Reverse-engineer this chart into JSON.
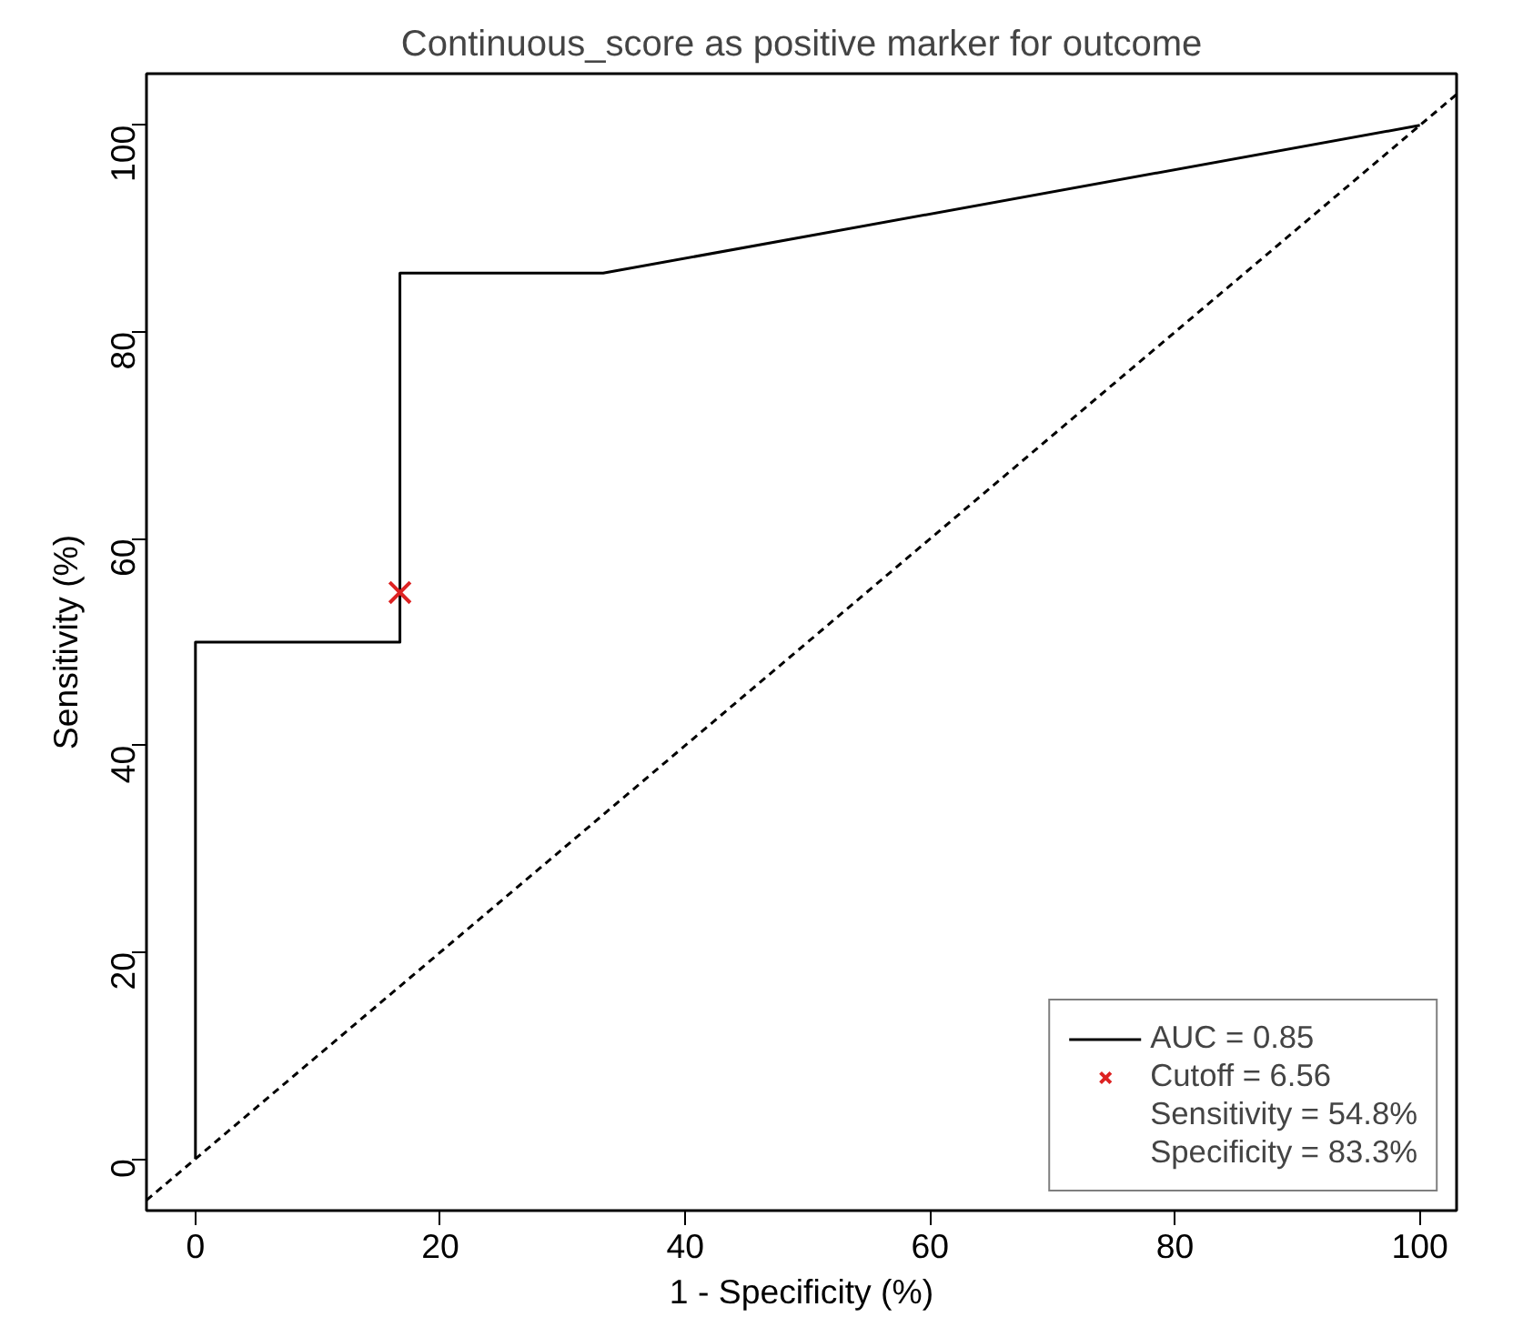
{
  "chart_data": {
    "type": "line",
    "title": "Continuous_score as positive marker for outcome",
    "xlabel": "1 - Specificity (%)",
    "ylabel": "Sensitivity (%)",
    "series": [
      {
        "name": "AUC = 0.85",
        "color": "#000000",
        "x": [
          0,
          0,
          16.7,
          16.7,
          33.3,
          100
        ],
        "values": [
          0,
          50,
          50,
          85.7,
          85.7,
          100
        ],
        "line_style": "solid"
      },
      {
        "type": "line",
        "color": "#000000",
        "x": [
          -4,
          103
        ],
        "values": [
          -4,
          103
        ],
        "line_style": "dashed"
      },
      {
        "name": "Cutoff = 6.56",
        "type": "scatter",
        "color": "#dd2222",
        "x": [
          16.7
        ],
        "values": [
          54.8
        ],
        "marker": "cross"
      }
    ],
    "annotations": [
      "Sensitivity = 54.8%",
      "Specificity = 83.3%"
    ],
    "xlim": [
      -4,
      103
    ],
    "ylim": [
      -5,
      105
    ],
    "xticks": [
      0,
      20,
      40,
      60,
      80,
      100
    ],
    "yticks": [
      0,
      20,
      40,
      60,
      80,
      100
    ],
    "grid": false,
    "legend": "bottom right"
  }
}
